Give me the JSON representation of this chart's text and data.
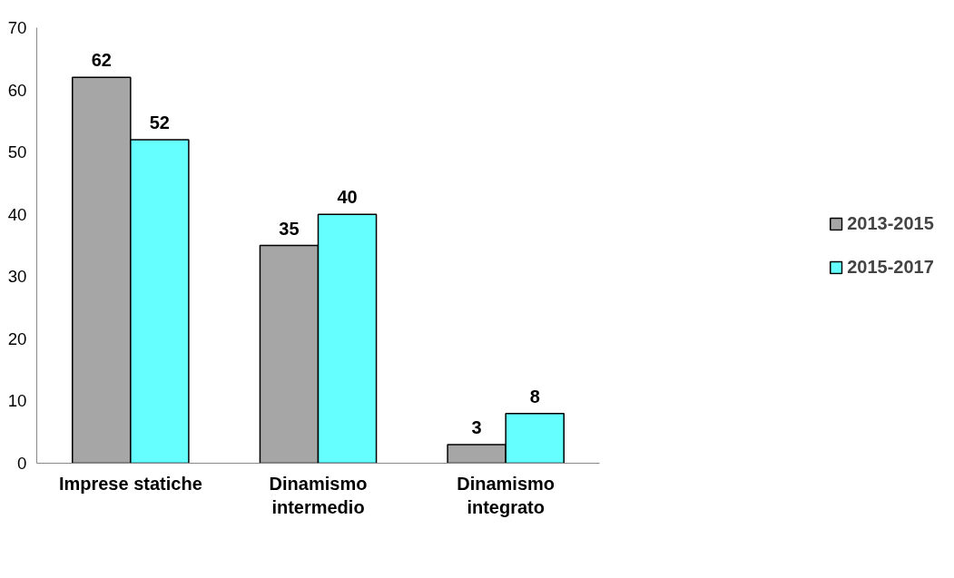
{
  "chart_data": {
    "type": "bar",
    "categories": [
      "Imprese statiche",
      "Dinamismo\nintermedio",
      "Dinamismo\nintegrato"
    ],
    "series": [
      {
        "name": "2013-2015",
        "color": "#a6a6a6",
        "values": [
          62,
          35,
          3
        ]
      },
      {
        "name": "2015-2017",
        "color": "#66ffff",
        "values": [
          52,
          40,
          8
        ]
      }
    ],
    "ylim": [
      0,
      70
    ],
    "yticks": [
      0,
      10,
      20,
      30,
      40,
      50,
      60,
      70
    ],
    "data_labels": true,
    "grid": false,
    "legend": "right"
  }
}
